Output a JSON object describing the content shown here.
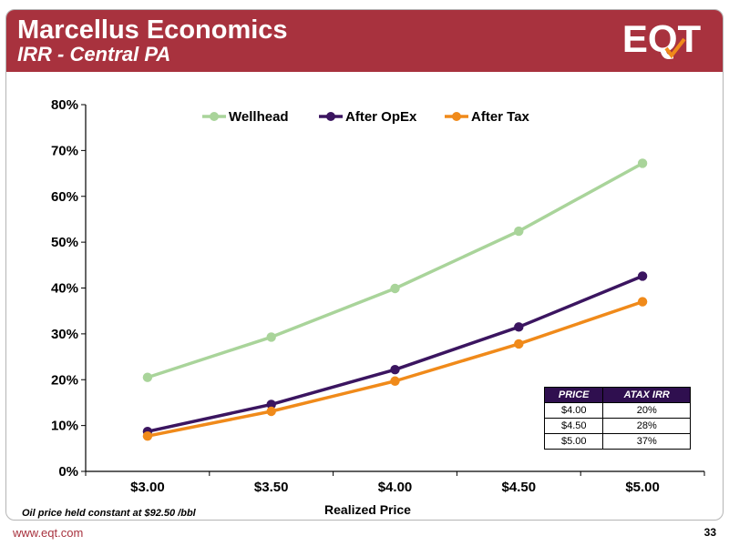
{
  "header": {
    "title": "Marcellus Economics",
    "subtitle": "IRR - Central PA",
    "logo_text": "EQT"
  },
  "colors": {
    "header_bg": "#a8323e",
    "table_header_bg": "#2f0f4f"
  },
  "chart_data": {
    "type": "line",
    "categories": [
      "$3.00",
      "$3.50",
      "$4.00",
      "$4.50",
      "$5.00"
    ],
    "series": [
      {
        "name": "Wellhead",
        "color": "#a9d49a",
        "values": [
          0.205,
          0.293,
          0.399,
          0.524,
          0.672
        ]
      },
      {
        "name": "After OpEx",
        "color": "#3b1560",
        "values": [
          0.087,
          0.146,
          0.222,
          0.315,
          0.426
        ]
      },
      {
        "name": "After Tax",
        "color": "#f08a1a",
        "values": [
          0.077,
          0.131,
          0.197,
          0.278,
          0.37
        ]
      }
    ],
    "ylim": [
      0,
      0.8
    ],
    "yticks": [
      "0%",
      "10%",
      "20%",
      "30%",
      "40%",
      "50%",
      "60%",
      "70%",
      "80%"
    ],
    "xlabel": "Realized Price",
    "ylabel": "",
    "legend_position": "top",
    "grid": false
  },
  "price_table": {
    "headers": [
      "PRICE",
      "ATAX IRR"
    ],
    "rows": [
      [
        "$4.00",
        "20%"
      ],
      [
        "$4.50",
        "28%"
      ],
      [
        "$5.00",
        "37%"
      ]
    ]
  },
  "footer": {
    "note": "Oil price held constant at $92.50 /bbl",
    "url": "www.eqt.com",
    "page_number": "33"
  }
}
